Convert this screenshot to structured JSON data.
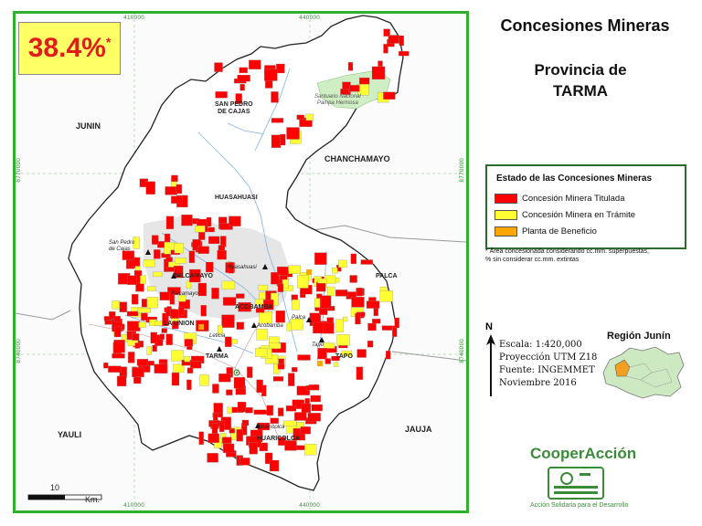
{
  "header": {
    "title": "Concesiones Mineras",
    "subtitle_line1": "Provincia de",
    "subtitle_line2": "TARMA"
  },
  "map": {
    "percentage_value": "38.4%",
    "percentage_mark": "*",
    "grid_labels": {
      "x1": "410000",
      "x2": "440000",
      "y1": "8770000",
      "y2": "8740000"
    },
    "regions": {
      "junin": "JUNIN",
      "chanchamayo": "CHANCHAMAYO",
      "yauli": "YAULI",
      "jauja": "JAUJA"
    },
    "districts": {
      "san_pedro_de_cajas": "SAN PEDRO\nDE CAJAS",
      "huasahuasi": "HUASAHUASI",
      "palcamayo": "PALCAMAYO",
      "acobamba": "ACOBAMBA",
      "la_union": "LA UNION",
      "tarma": "TARMA",
      "palca": "PALCA",
      "tapo": "TAPO",
      "huaricolca": "HUARICOLCA"
    },
    "towns": {
      "san_pedro_de_cajas": "San Pedro\nde Cajas",
      "huasahuasi": "Huasahuasi",
      "palcamayo": "Palcamayo",
      "acobamba": "Acobamba",
      "palca": "Palca",
      "tapo": "Tapo",
      "leticia": "Leticia",
      "huaricolca": "Huaricolca"
    },
    "sanctuary": "Santuario Nacional\nPampa Hermosa",
    "scale_bar_value": "10",
    "scale_bar_unit": "Km."
  },
  "legend": {
    "title": "Estado de las Concesiones Mineras",
    "items": [
      {
        "label": "Concesión Minera Titulada",
        "color": "#ff0000"
      },
      {
        "label": "Concesión Minera en Trámite",
        "color": "#ffff33"
      },
      {
        "label": "Planta de Beneficio",
        "color": "#ffa500"
      }
    ],
    "note_line1": "* Área concesionada considerando cc.mm. superpuestas,",
    "note_line2": "% sin considerar cc.mm. extintas"
  },
  "info": {
    "north": "N",
    "scale": "Escala: 1:420,000",
    "projection": "Proyección UTM Z18",
    "source": "Fuente: INGEMMET",
    "date": "Noviembre  2016"
  },
  "inset": {
    "title": "Región Junín"
  },
  "branding": {
    "name": "CooperAcción",
    "tagline": "Acción Solidaria para el Desarrollo"
  }
}
